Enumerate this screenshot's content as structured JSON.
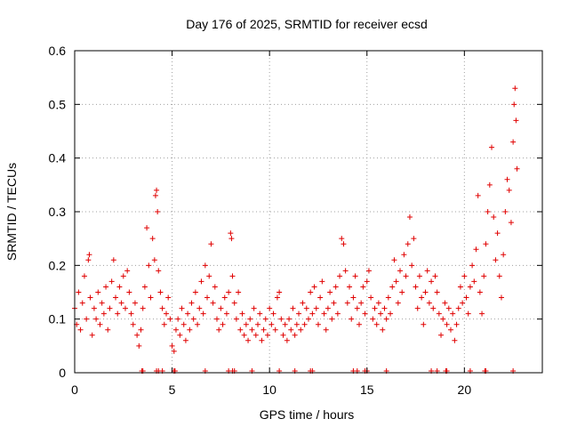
{
  "chart_data": {
    "type": "scatter",
    "title": "Day 176 of 2025, SRMTID for receiver ecsd",
    "xlabel": "GPS time / hours",
    "ylabel": "SRMTID / TECUs",
    "xlim": [
      0,
      24
    ],
    "ylim": [
      0,
      0.6
    ],
    "xticks": [
      0,
      5,
      10,
      15,
      20
    ],
    "xtick_labels": [
      "0",
      "5",
      "10",
      "15",
      "20"
    ],
    "yticks": [
      0,
      0.1,
      0.2,
      0.3,
      0.4,
      0.5,
      0.6
    ],
    "ytick_labels": [
      "0",
      "0.1",
      "0.2",
      "0.3",
      "0.4",
      "0.5",
      "0.6"
    ],
    "grid": true,
    "marker": "+",
    "color": "#e00000",
    "series": [
      {
        "name": "SRMTID",
        "points": [
          [
            0.0,
            0.12
          ],
          [
            0.1,
            0.09
          ],
          [
            0.2,
            0.15
          ],
          [
            0.3,
            0.08
          ],
          [
            0.4,
            0.13
          ],
          [
            0.5,
            0.18
          ],
          [
            0.6,
            0.1
          ],
          [
            0.7,
            0.21
          ],
          [
            0.75,
            0.22
          ],
          [
            0.8,
            0.14
          ],
          [
            0.9,
            0.07
          ],
          [
            1.0,
            0.12
          ],
          [
            1.1,
            0.1
          ],
          [
            1.2,
            0.15
          ],
          [
            1.3,
            0.09
          ],
          [
            1.4,
            0.13
          ],
          [
            1.5,
            0.11
          ],
          [
            1.6,
            0.16
          ],
          [
            1.7,
            0.08
          ],
          [
            1.8,
            0.12
          ],
          [
            1.9,
            0.17
          ],
          [
            2.0,
            0.21
          ],
          [
            2.1,
            0.14
          ],
          [
            2.2,
            0.11
          ],
          [
            2.3,
            0.16
          ],
          [
            2.4,
            0.13
          ],
          [
            2.5,
            0.18
          ],
          [
            2.6,
            0.12
          ],
          [
            2.7,
            0.19
          ],
          [
            2.8,
            0.15
          ],
          [
            2.9,
            0.11
          ],
          [
            3.0,
            0.09
          ],
          [
            3.1,
            0.13
          ],
          [
            3.2,
            0.07
          ],
          [
            3.3,
            0.05
          ],
          [
            3.4,
            0.08
          ],
          [
            3.5,
            0.12
          ],
          [
            3.6,
            0.16
          ],
          [
            3.7,
            0.27
          ],
          [
            3.8,
            0.2
          ],
          [
            3.9,
            0.14
          ],
          [
            4.0,
            0.25
          ],
          [
            4.1,
            0.21
          ],
          [
            4.15,
            0.33
          ],
          [
            4.2,
            0.34
          ],
          [
            4.25,
            0.3
          ],
          [
            4.3,
            0.19
          ],
          [
            4.4,
            0.15
          ],
          [
            4.5,
            0.12
          ],
          [
            4.6,
            0.09
          ],
          [
            4.7,
            0.11
          ],
          [
            4.8,
            0.14
          ],
          [
            4.9,
            0.1
          ],
          [
            5.0,
            0.05
          ],
          [
            5.1,
            0.04
          ],
          [
            5.2,
            0.08
          ],
          [
            5.3,
            0.1
          ],
          [
            5.4,
            0.07
          ],
          [
            5.5,
            0.12
          ],
          [
            5.6,
            0.09
          ],
          [
            5.7,
            0.06
          ],
          [
            5.8,
            0.11
          ],
          [
            5.9,
            0.08
          ],
          [
            6.0,
            0.13
          ],
          [
            6.1,
            0.1
          ],
          [
            6.2,
            0.15
          ],
          [
            6.3,
            0.09
          ],
          [
            6.4,
            0.12
          ],
          [
            6.5,
            0.17
          ],
          [
            6.6,
            0.11
          ],
          [
            6.7,
            0.2
          ],
          [
            6.8,
            0.14
          ],
          [
            6.9,
            0.18
          ],
          [
            7.0,
            0.24
          ],
          [
            7.1,
            0.13
          ],
          [
            7.2,
            0.16
          ],
          [
            7.3,
            0.1
          ],
          [
            7.4,
            0.08
          ],
          [
            7.5,
            0.12
          ],
          [
            7.6,
            0.09
          ],
          [
            7.7,
            0.14
          ],
          [
            7.8,
            0.11
          ],
          [
            7.9,
            0.15
          ],
          [
            8.0,
            0.26
          ],
          [
            8.05,
            0.25
          ],
          [
            8.1,
            0.18
          ],
          [
            8.2,
            0.13
          ],
          [
            8.3,
            0.1
          ],
          [
            8.4,
            0.15
          ],
          [
            8.5,
            0.08
          ],
          [
            8.6,
            0.11
          ],
          [
            8.7,
            0.07
          ],
          [
            8.8,
            0.09
          ],
          [
            8.9,
            0.06
          ],
          [
            9.0,
            0.1
          ],
          [
            9.1,
            0.08
          ],
          [
            9.2,
            0.12
          ],
          [
            9.3,
            0.07
          ],
          [
            9.4,
            0.09
          ],
          [
            9.5,
            0.11
          ],
          [
            9.6,
            0.06
          ],
          [
            9.7,
            0.08
          ],
          [
            9.8,
            0.1
          ],
          [
            9.9,
            0.07
          ],
          [
            10.0,
            0.12
          ],
          [
            10.1,
            0.09
          ],
          [
            10.2,
            0.11
          ],
          [
            10.3,
            0.08
          ],
          [
            10.4,
            0.14
          ],
          [
            10.5,
            0.15
          ],
          [
            10.6,
            0.1
          ],
          [
            10.7,
            0.07
          ],
          [
            10.8,
            0.09
          ],
          [
            10.9,
            0.06
          ],
          [
            11.0,
            0.1
          ],
          [
            11.1,
            0.08
          ],
          [
            11.2,
            0.12
          ],
          [
            11.3,
            0.07
          ],
          [
            11.4,
            0.09
          ],
          [
            11.5,
            0.11
          ],
          [
            11.6,
            0.08
          ],
          [
            11.7,
            0.13
          ],
          [
            11.8,
            0.09
          ],
          [
            11.9,
            0.12
          ],
          [
            12.0,
            0.1
          ],
          [
            12.1,
            0.15
          ],
          [
            12.2,
            0.11
          ],
          [
            12.3,
            0.16
          ],
          [
            12.4,
            0.12
          ],
          [
            12.5,
            0.09
          ],
          [
            12.6,
            0.14
          ],
          [
            12.7,
            0.17
          ],
          [
            12.8,
            0.11
          ],
          [
            12.9,
            0.08
          ],
          [
            13.0,
            0.12
          ],
          [
            13.1,
            0.15
          ],
          [
            13.2,
            0.1
          ],
          [
            13.3,
            0.13
          ],
          [
            13.4,
            0.16
          ],
          [
            13.5,
            0.11
          ],
          [
            13.6,
            0.18
          ],
          [
            13.7,
            0.25
          ],
          [
            13.8,
            0.24
          ],
          [
            13.9,
            0.19
          ],
          [
            14.0,
            0.13
          ],
          [
            14.1,
            0.16
          ],
          [
            14.2,
            0.1
          ],
          [
            14.3,
            0.14
          ],
          [
            14.4,
            0.18
          ],
          [
            14.5,
            0.12
          ],
          [
            14.6,
            0.09
          ],
          [
            14.7,
            0.13
          ],
          [
            14.8,
            0.16
          ],
          [
            14.9,
            0.11
          ],
          [
            15.0,
            0.17
          ],
          [
            15.1,
            0.19
          ],
          [
            15.2,
            0.14
          ],
          [
            15.3,
            0.1
          ],
          [
            15.4,
            0.12
          ],
          [
            15.5,
            0.09
          ],
          [
            15.6,
            0.13
          ],
          [
            15.7,
            0.11
          ],
          [
            15.8,
            0.08
          ],
          [
            15.9,
            0.12
          ],
          [
            16.0,
            0.1
          ],
          [
            16.1,
            0.14
          ],
          [
            16.2,
            0.11
          ],
          [
            16.3,
            0.16
          ],
          [
            16.4,
            0.21
          ],
          [
            16.5,
            0.17
          ],
          [
            16.6,
            0.13
          ],
          [
            16.7,
            0.19
          ],
          [
            16.8,
            0.15
          ],
          [
            16.9,
            0.22
          ],
          [
            17.0,
            0.18
          ],
          [
            17.1,
            0.24
          ],
          [
            17.2,
            0.29
          ],
          [
            17.3,
            0.2
          ],
          [
            17.4,
            0.25
          ],
          [
            17.5,
            0.16
          ],
          [
            17.6,
            0.12
          ],
          [
            17.7,
            0.18
          ],
          [
            17.8,
            0.14
          ],
          [
            17.9,
            0.09
          ],
          [
            18.0,
            0.15
          ],
          [
            18.1,
            0.19
          ],
          [
            18.2,
            0.13
          ],
          [
            18.3,
            0.17
          ],
          [
            18.4,
            0.12
          ],
          [
            18.5,
            0.18
          ],
          [
            18.6,
            0.15
          ],
          [
            18.7,
            0.11
          ],
          [
            18.8,
            0.07
          ],
          [
            18.9,
            0.1
          ],
          [
            19.0,
            0.13
          ],
          [
            19.1,
            0.09
          ],
          [
            19.2,
            0.12
          ],
          [
            19.3,
            0.08
          ],
          [
            19.4,
            0.11
          ],
          [
            19.5,
            0.06
          ],
          [
            19.6,
            0.09
          ],
          [
            19.7,
            0.12
          ],
          [
            19.8,
            0.16
          ],
          [
            19.9,
            0.13
          ],
          [
            20.0,
            0.18
          ],
          [
            20.1,
            0.14
          ],
          [
            20.2,
            0.11
          ],
          [
            20.3,
            0.16
          ],
          [
            20.4,
            0.2
          ],
          [
            20.5,
            0.17
          ],
          [
            20.6,
            0.23
          ],
          [
            20.7,
            0.33
          ],
          [
            20.8,
            0.15
          ],
          [
            20.9,
            0.11
          ],
          [
            21.0,
            0.18
          ],
          [
            21.1,
            0.24
          ],
          [
            21.2,
            0.3
          ],
          [
            21.3,
            0.35
          ],
          [
            21.4,
            0.42
          ],
          [
            21.5,
            0.29
          ],
          [
            21.6,
            0.21
          ],
          [
            21.7,
            0.26
          ],
          [
            21.8,
            0.18
          ],
          [
            21.9,
            0.14
          ],
          [
            22.0,
            0.22
          ],
          [
            22.1,
            0.3
          ],
          [
            22.2,
            0.36
          ],
          [
            22.3,
            0.34
          ],
          [
            22.4,
            0.28
          ],
          [
            22.5,
            0.43
          ],
          [
            22.55,
            0.5
          ],
          [
            22.6,
            0.53
          ],
          [
            22.65,
            0.47
          ],
          [
            22.7,
            0.38
          ]
        ]
      }
    ],
    "gap_markers_x": [
      3.45,
      3.5,
      4.2,
      4.3,
      4.5,
      5.1,
      5.15,
      6.7,
      7.9,
      8.1,
      8.2,
      9.1,
      10.5,
      11.3,
      12.1,
      12.2,
      14.3,
      14.5,
      14.9,
      15.0,
      16.0,
      18.3,
      18.6,
      19.05,
      19.1,
      20.3,
      21.05,
      21.1,
      22.5
    ]
  }
}
